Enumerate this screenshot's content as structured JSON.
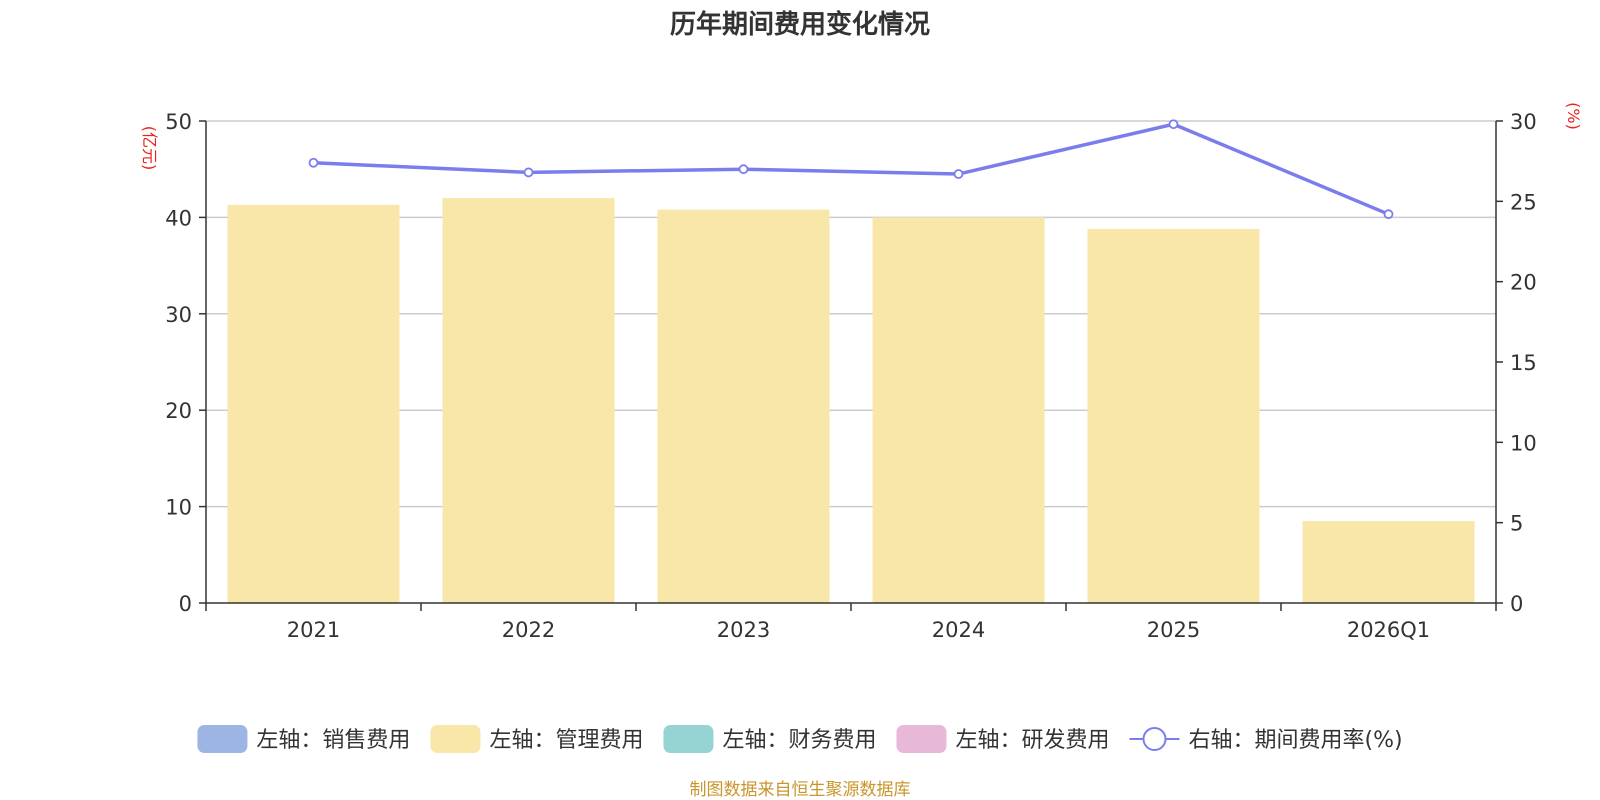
{
  "chart_data": {
    "type": "bar",
    "title": "历年期间费用变化情况",
    "categories": [
      "2021",
      "2022",
      "2023",
      "2024",
      "2025",
      "2026Q1"
    ],
    "left_axis": {
      "unit": "(亿元)",
      "ylim": [
        0,
        50
      ],
      "ticks": [
        0,
        10,
        20,
        30,
        40,
        50
      ]
    },
    "right_axis": {
      "unit": "(%)",
      "ylim": [
        0,
        30
      ],
      "ticks": [
        0,
        5,
        10,
        15,
        20,
        25,
        30
      ]
    },
    "series": [
      {
        "name": "左轴：销售费用",
        "type": "bar",
        "axis": "left",
        "color": "#9db5e2",
        "values": [
          null,
          null,
          null,
          null,
          null,
          null
        ]
      },
      {
        "name": "左轴：管理费用",
        "type": "bar",
        "axis": "left",
        "color": "#f8e7a8",
        "values": [
          41.3,
          42.0,
          40.8,
          40.0,
          38.8,
          8.5
        ]
      },
      {
        "name": "左轴：财务费用",
        "type": "bar",
        "axis": "left",
        "color": "#96d3d3",
        "values": [
          null,
          null,
          null,
          null,
          null,
          null
        ]
      },
      {
        "name": "左轴：研发费用",
        "type": "bar",
        "axis": "left",
        "color": "#e8b8d8",
        "values": [
          null,
          null,
          null,
          null,
          null,
          null
        ]
      },
      {
        "name": "右轴：期间费用率(%)",
        "type": "line",
        "axis": "right",
        "color": "#7b7ded",
        "values": [
          27.4,
          26.8,
          27.0,
          26.7,
          29.8,
          24.2
        ]
      }
    ],
    "grid": true,
    "legend_position": "bottom"
  },
  "source_note": "制图数据来自恒生聚源数据库"
}
